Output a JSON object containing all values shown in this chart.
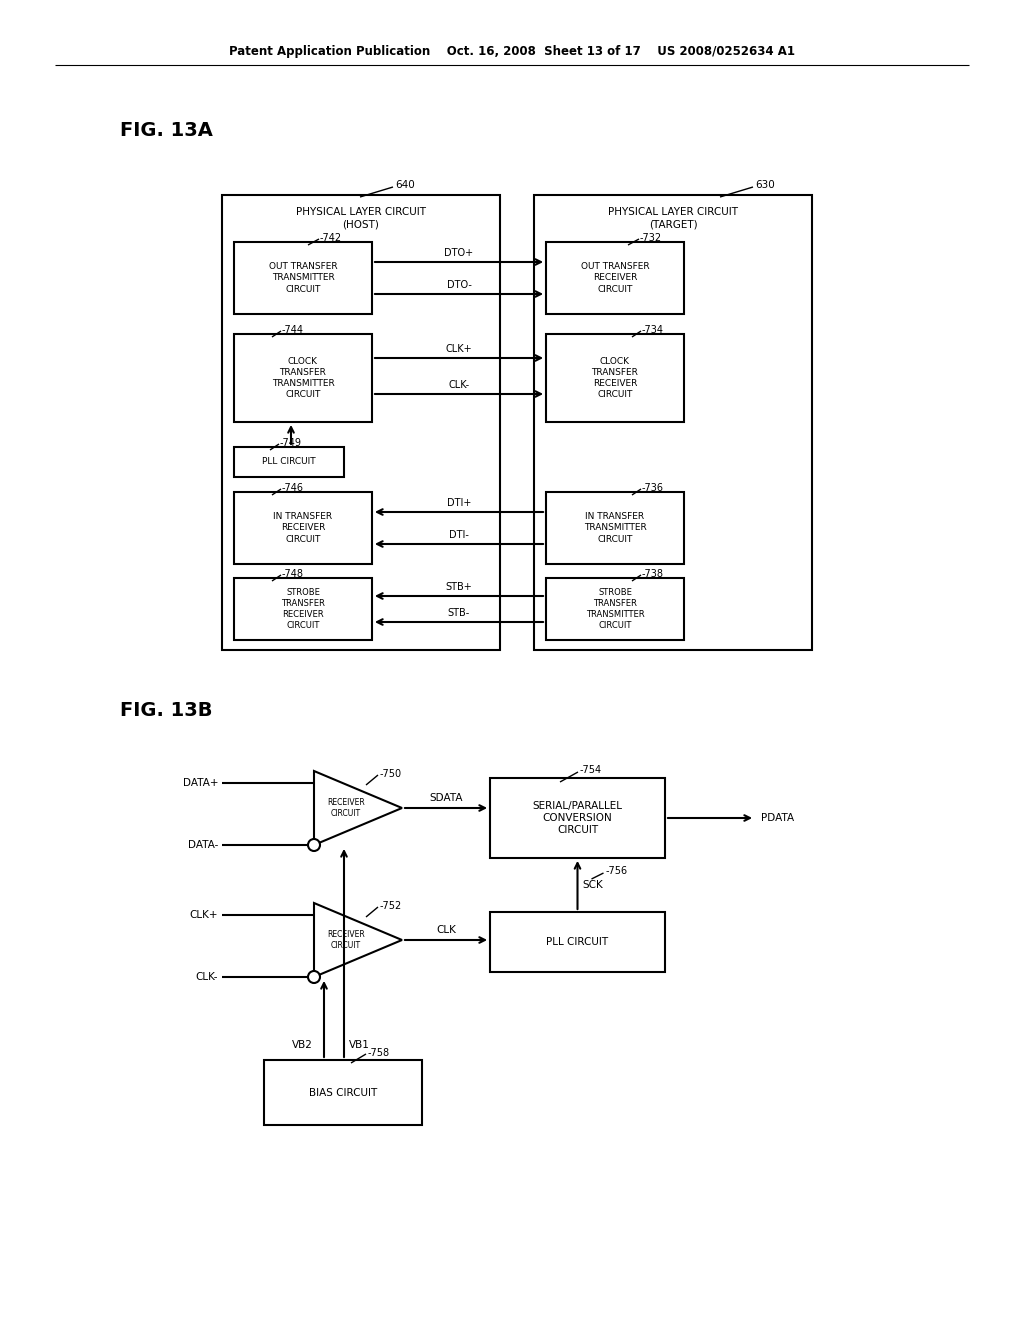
{
  "bg_color": "#ffffff",
  "text_color": "#000000",
  "header": "Patent Application Publication    Oct. 16, 2008  Sheet 13 of 17    US 2008/0252634 A1",
  "fig13a_label": "FIG. 13A",
  "fig13b_label": "FIG. 13B"
}
